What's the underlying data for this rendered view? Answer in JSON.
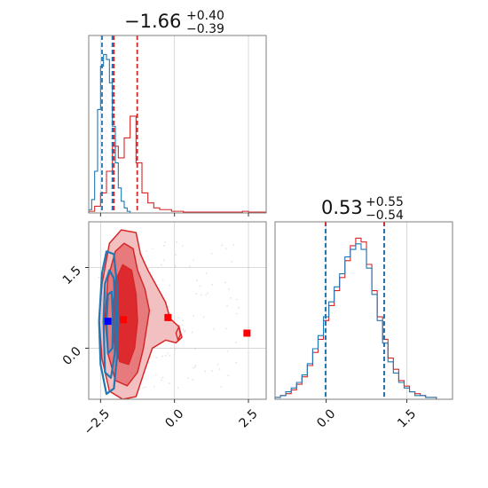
{
  "colors": {
    "red": "#d62728",
    "blue": "#1f77b4",
    "red_fill_dark": "#dd2a2e",
    "red_fill_mid": "#e77a7c",
    "red_fill_light": "#f3c0c1",
    "marker_blue": "#0000ff",
    "marker_red": "#ff0000"
  },
  "chart_data": [
    {
      "type": "histogram",
      "panel": "top-left",
      "title": {
        "value": "−1.66",
        "upper": "+0.40",
        "lower": "−0.39"
      },
      "xlim": [
        -2.9,
        3.1
      ],
      "grid": true,
      "vlines_red": [
        -2.05,
        -1.26
      ],
      "vlines_blue": [
        -2.45,
        -2.1
      ],
      "series": [
        {
          "name": "",
          "color": "red",
          "bin_edges": [
            -2.9,
            -2.7,
            -2.5,
            -2.3,
            -2.1,
            -1.9,
            -1.7,
            -1.5,
            -1.3,
            -1.1,
            -0.9,
            -0.7,
            -0.5,
            -0.3,
            -0.1,
            0.1,
            0.3,
            0.5,
            0.7,
            0.9,
            1.1,
            1.3,
            1.5,
            1.7,
            1.9,
            2.1,
            2.3,
            2.5,
            2.7,
            2.9,
            3.1
          ],
          "counts": [
            0.01,
            0.04,
            0.12,
            0.25,
            0.4,
            0.33,
            0.45,
            0.58,
            0.3,
            0.12,
            0.06,
            0.03,
            0.02,
            0.02,
            0.01,
            0.01,
            0.005,
            0.005,
            0.005,
            0.005,
            0.005,
            0.005,
            0.005,
            0.005,
            0.005,
            0.005,
            0.01,
            0.005,
            0.005,
            0.005
          ]
        },
        {
          "name": "",
          "color": "blue",
          "bin_edges": [
            -2.9,
            -2.8,
            -2.7,
            -2.6,
            -2.5,
            -2.4,
            -2.3,
            -2.2,
            -2.1,
            -2.0,
            -1.9,
            -1.8,
            -1.7,
            -1.6,
            -1.5
          ],
          "counts": [
            0.02,
            0.08,
            0.25,
            0.62,
            0.88,
            0.95,
            0.92,
            0.78,
            0.52,
            0.3,
            0.15,
            0.07,
            0.03,
            0.01
          ]
        }
      ]
    },
    {
      "type": "contour",
      "panel": "bottom-left",
      "xlim": [
        -2.9,
        3.1
      ],
      "ylim": [
        -0.95,
        2.35
      ],
      "x_ticks": [
        -2.5,
        0.0,
        2.5
      ],
      "x_tick_labels": [
        "−2.5",
        "0.0",
        "2.5"
      ],
      "y_ticks": [
        0.0,
        1.5
      ],
      "y_tick_labels": [
        "0.0",
        "1.5"
      ],
      "grid": true,
      "markers": [
        {
          "x": -2.25,
          "y": 0.5,
          "color": "marker_blue"
        },
        {
          "x": -1.73,
          "y": 0.53,
          "color": "marker_red"
        },
        {
          "x": -0.22,
          "y": 0.57,
          "color": "marker_red"
        },
        {
          "x": 2.45,
          "y": 0.28,
          "color": "marker_red"
        }
      ]
    },
    {
      "type": "histogram",
      "panel": "bottom-right",
      "title": {
        "value": "0.53",
        "upper": "+0.55",
        "lower": "−0.54"
      },
      "xlim": [
        -0.95,
        2.35
      ],
      "x_ticks": [
        0.0,
        1.5
      ],
      "x_tick_labels": [
        "0.0",
        "1.5"
      ],
      "grid": true,
      "vlines_red": [
        -0.01,
        1.08
      ],
      "vlines_blue": [
        -0.01,
        1.08
      ],
      "series": [
        {
          "name": "",
          "color": "red",
          "bin_edges": [
            -0.95,
            -0.85,
            -0.75,
            -0.65,
            -0.55,
            -0.45,
            -0.35,
            -0.25,
            -0.15,
            -0.05,
            0.05,
            0.15,
            0.25,
            0.35,
            0.45,
            0.55,
            0.65,
            0.75,
            0.85,
            0.95,
            1.05,
            1.15,
            1.25,
            1.35,
            1.45,
            1.55,
            1.65,
            1.75,
            1.85,
            1.95,
            2.05,
            2.15,
            2.25,
            2.35
          ],
          "counts": [
            0.01,
            0.02,
            0.03,
            0.05,
            0.08,
            0.12,
            0.18,
            0.25,
            0.32,
            0.42,
            0.5,
            0.58,
            0.65,
            0.74,
            0.82,
            0.86,
            0.84,
            0.72,
            0.58,
            0.44,
            0.32,
            0.22,
            0.16,
            0.1,
            0.07,
            0.04,
            0.03,
            0.02,
            0.01,
            0.01,
            0.0,
            0.0,
            0.0
          ]
        },
        {
          "name": "",
          "color": "blue",
          "bin_edges": [
            -0.95,
            -0.85,
            -0.75,
            -0.65,
            -0.55,
            -0.45,
            -0.35,
            -0.25,
            -0.15,
            -0.05,
            0.05,
            0.15,
            0.25,
            0.35,
            0.45,
            0.55,
            0.65,
            0.75,
            0.85,
            0.95,
            1.05,
            1.15,
            1.25,
            1.35,
            1.45,
            1.55,
            1.65,
            1.75,
            1.85,
            1.95,
            2.05,
            2.15,
            2.25,
            2.35
          ],
          "counts": [
            0.01,
            0.02,
            0.04,
            0.06,
            0.09,
            0.13,
            0.19,
            0.27,
            0.34,
            0.44,
            0.52,
            0.6,
            0.67,
            0.76,
            0.8,
            0.83,
            0.8,
            0.7,
            0.56,
            0.42,
            0.3,
            0.2,
            0.14,
            0.09,
            0.06,
            0.04,
            0.02,
            0.02,
            0.01,
            0.01,
            0.0,
            0.0,
            0.0
          ]
        }
      ]
    }
  ]
}
